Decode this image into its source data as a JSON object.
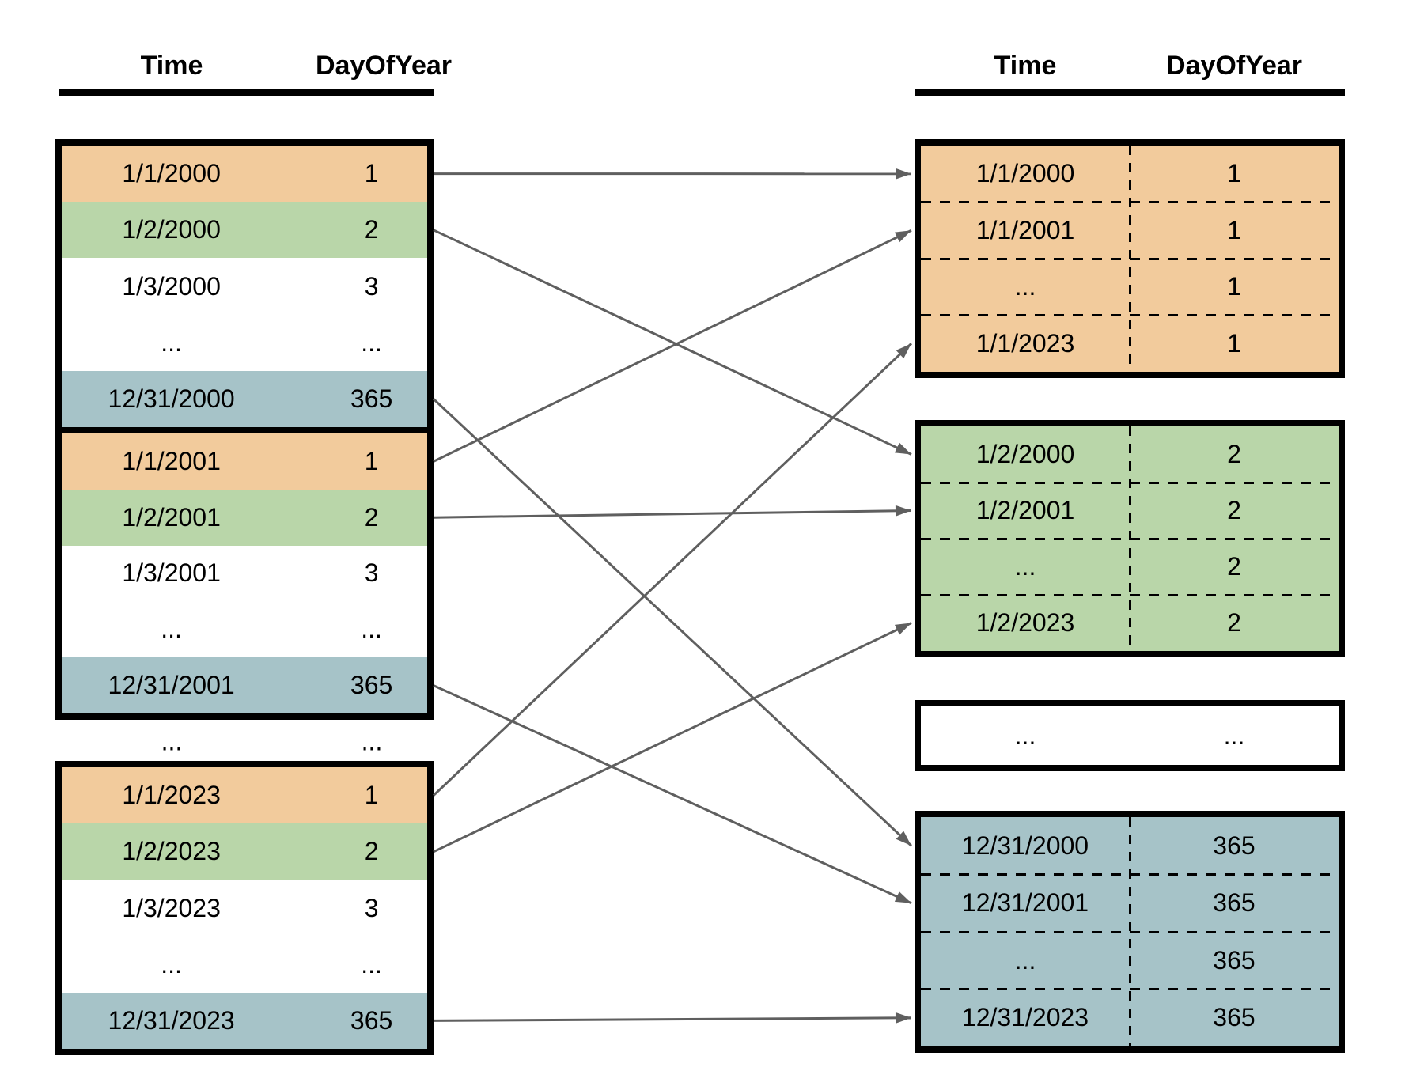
{
  "colors": {
    "orange": "#F2CB9C",
    "green": "#B9D6A9",
    "blue": "#A6C3C8",
    "white": "#FFFFFF",
    "arrow": "#5F5F5F",
    "border": "#000000"
  },
  "left_panel": {
    "header": {
      "time_label": "Time",
      "day_label": "DayOfYear"
    },
    "tables": [
      {
        "rows": [
          {
            "time": "1/1/2000",
            "day": "1",
            "color": "orange"
          },
          {
            "time": "1/2/2000",
            "day": "2",
            "color": "green"
          },
          {
            "time": "1/3/2000",
            "day": "3",
            "color": "white"
          },
          {
            "time": "...",
            "day": "...",
            "color": "white"
          },
          {
            "time": "12/31/2000",
            "day": "365",
            "color": "blue"
          }
        ]
      },
      {
        "rows": [
          {
            "time": "1/1/2001",
            "day": "1",
            "color": "orange"
          },
          {
            "time": "1/2/2001",
            "day": "2",
            "color": "green"
          },
          {
            "time": "1/3/2001",
            "day": "3",
            "color": "white"
          },
          {
            "time": "...",
            "day": "...",
            "color": "white"
          },
          {
            "time": "12/31/2001",
            "day": "365",
            "color": "blue"
          }
        ]
      },
      {
        "rows": [
          {
            "time": "1/1/2023",
            "day": "1",
            "color": "orange"
          },
          {
            "time": "1/2/2023",
            "day": "2",
            "color": "green"
          },
          {
            "time": "1/3/2023",
            "day": "3",
            "color": "white"
          },
          {
            "time": "...",
            "day": "...",
            "color": "white"
          },
          {
            "time": "12/31/2023",
            "day": "365",
            "color": "blue"
          }
        ]
      }
    ],
    "ellipsis_row": {
      "time": "...",
      "day": "..."
    }
  },
  "right_panel": {
    "header": {
      "time_label": "Time",
      "day_label": "DayOfYear"
    },
    "groups": [
      {
        "color": "orange",
        "rows": [
          {
            "time": "1/1/2000",
            "day": "1"
          },
          {
            "time": "1/1/2001",
            "day": "1"
          },
          {
            "time": "...",
            "day": "1"
          },
          {
            "time": "1/1/2023",
            "day": "1"
          }
        ]
      },
      {
        "color": "green",
        "rows": [
          {
            "time": "1/2/2000",
            "day": "2"
          },
          {
            "time": "1/2/2001",
            "day": "2"
          },
          {
            "time": "...",
            "day": "2"
          },
          {
            "time": "1/2/2023",
            "day": "2"
          }
        ]
      },
      {
        "color": "white",
        "rows": [
          {
            "time": "...",
            "day": "..."
          }
        ]
      },
      {
        "color": "blue",
        "rows": [
          {
            "time": "12/31/2000",
            "day": "365"
          },
          {
            "time": "12/31/2001",
            "day": "365"
          },
          {
            "time": "...",
            "day": "365"
          },
          {
            "time": "12/31/2023",
            "day": "365"
          }
        ]
      }
    ]
  },
  "arrows": [
    {
      "from": {
        "table": 0,
        "row": 0
      },
      "to": {
        "group": 0,
        "row": 0
      }
    },
    {
      "from": {
        "table": 0,
        "row": 1
      },
      "to": {
        "group": 1,
        "row": 0
      }
    },
    {
      "from": {
        "table": 0,
        "row": 4
      },
      "to": {
        "group": 3,
        "row": 0
      }
    },
    {
      "from": {
        "table": 1,
        "row": 0
      },
      "to": {
        "group": 0,
        "row": 1
      }
    },
    {
      "from": {
        "table": 1,
        "row": 1
      },
      "to": {
        "group": 1,
        "row": 1
      }
    },
    {
      "from": {
        "table": 1,
        "row": 4
      },
      "to": {
        "group": 3,
        "row": 1
      }
    },
    {
      "from": {
        "table": 2,
        "row": 0
      },
      "to": {
        "group": 0,
        "row": 3
      }
    },
    {
      "from": {
        "table": 2,
        "row": 1
      },
      "to": {
        "group": 1,
        "row": 3
      }
    },
    {
      "from": {
        "table": 2,
        "row": 4
      },
      "to": {
        "group": 3,
        "row": 3
      }
    }
  ]
}
